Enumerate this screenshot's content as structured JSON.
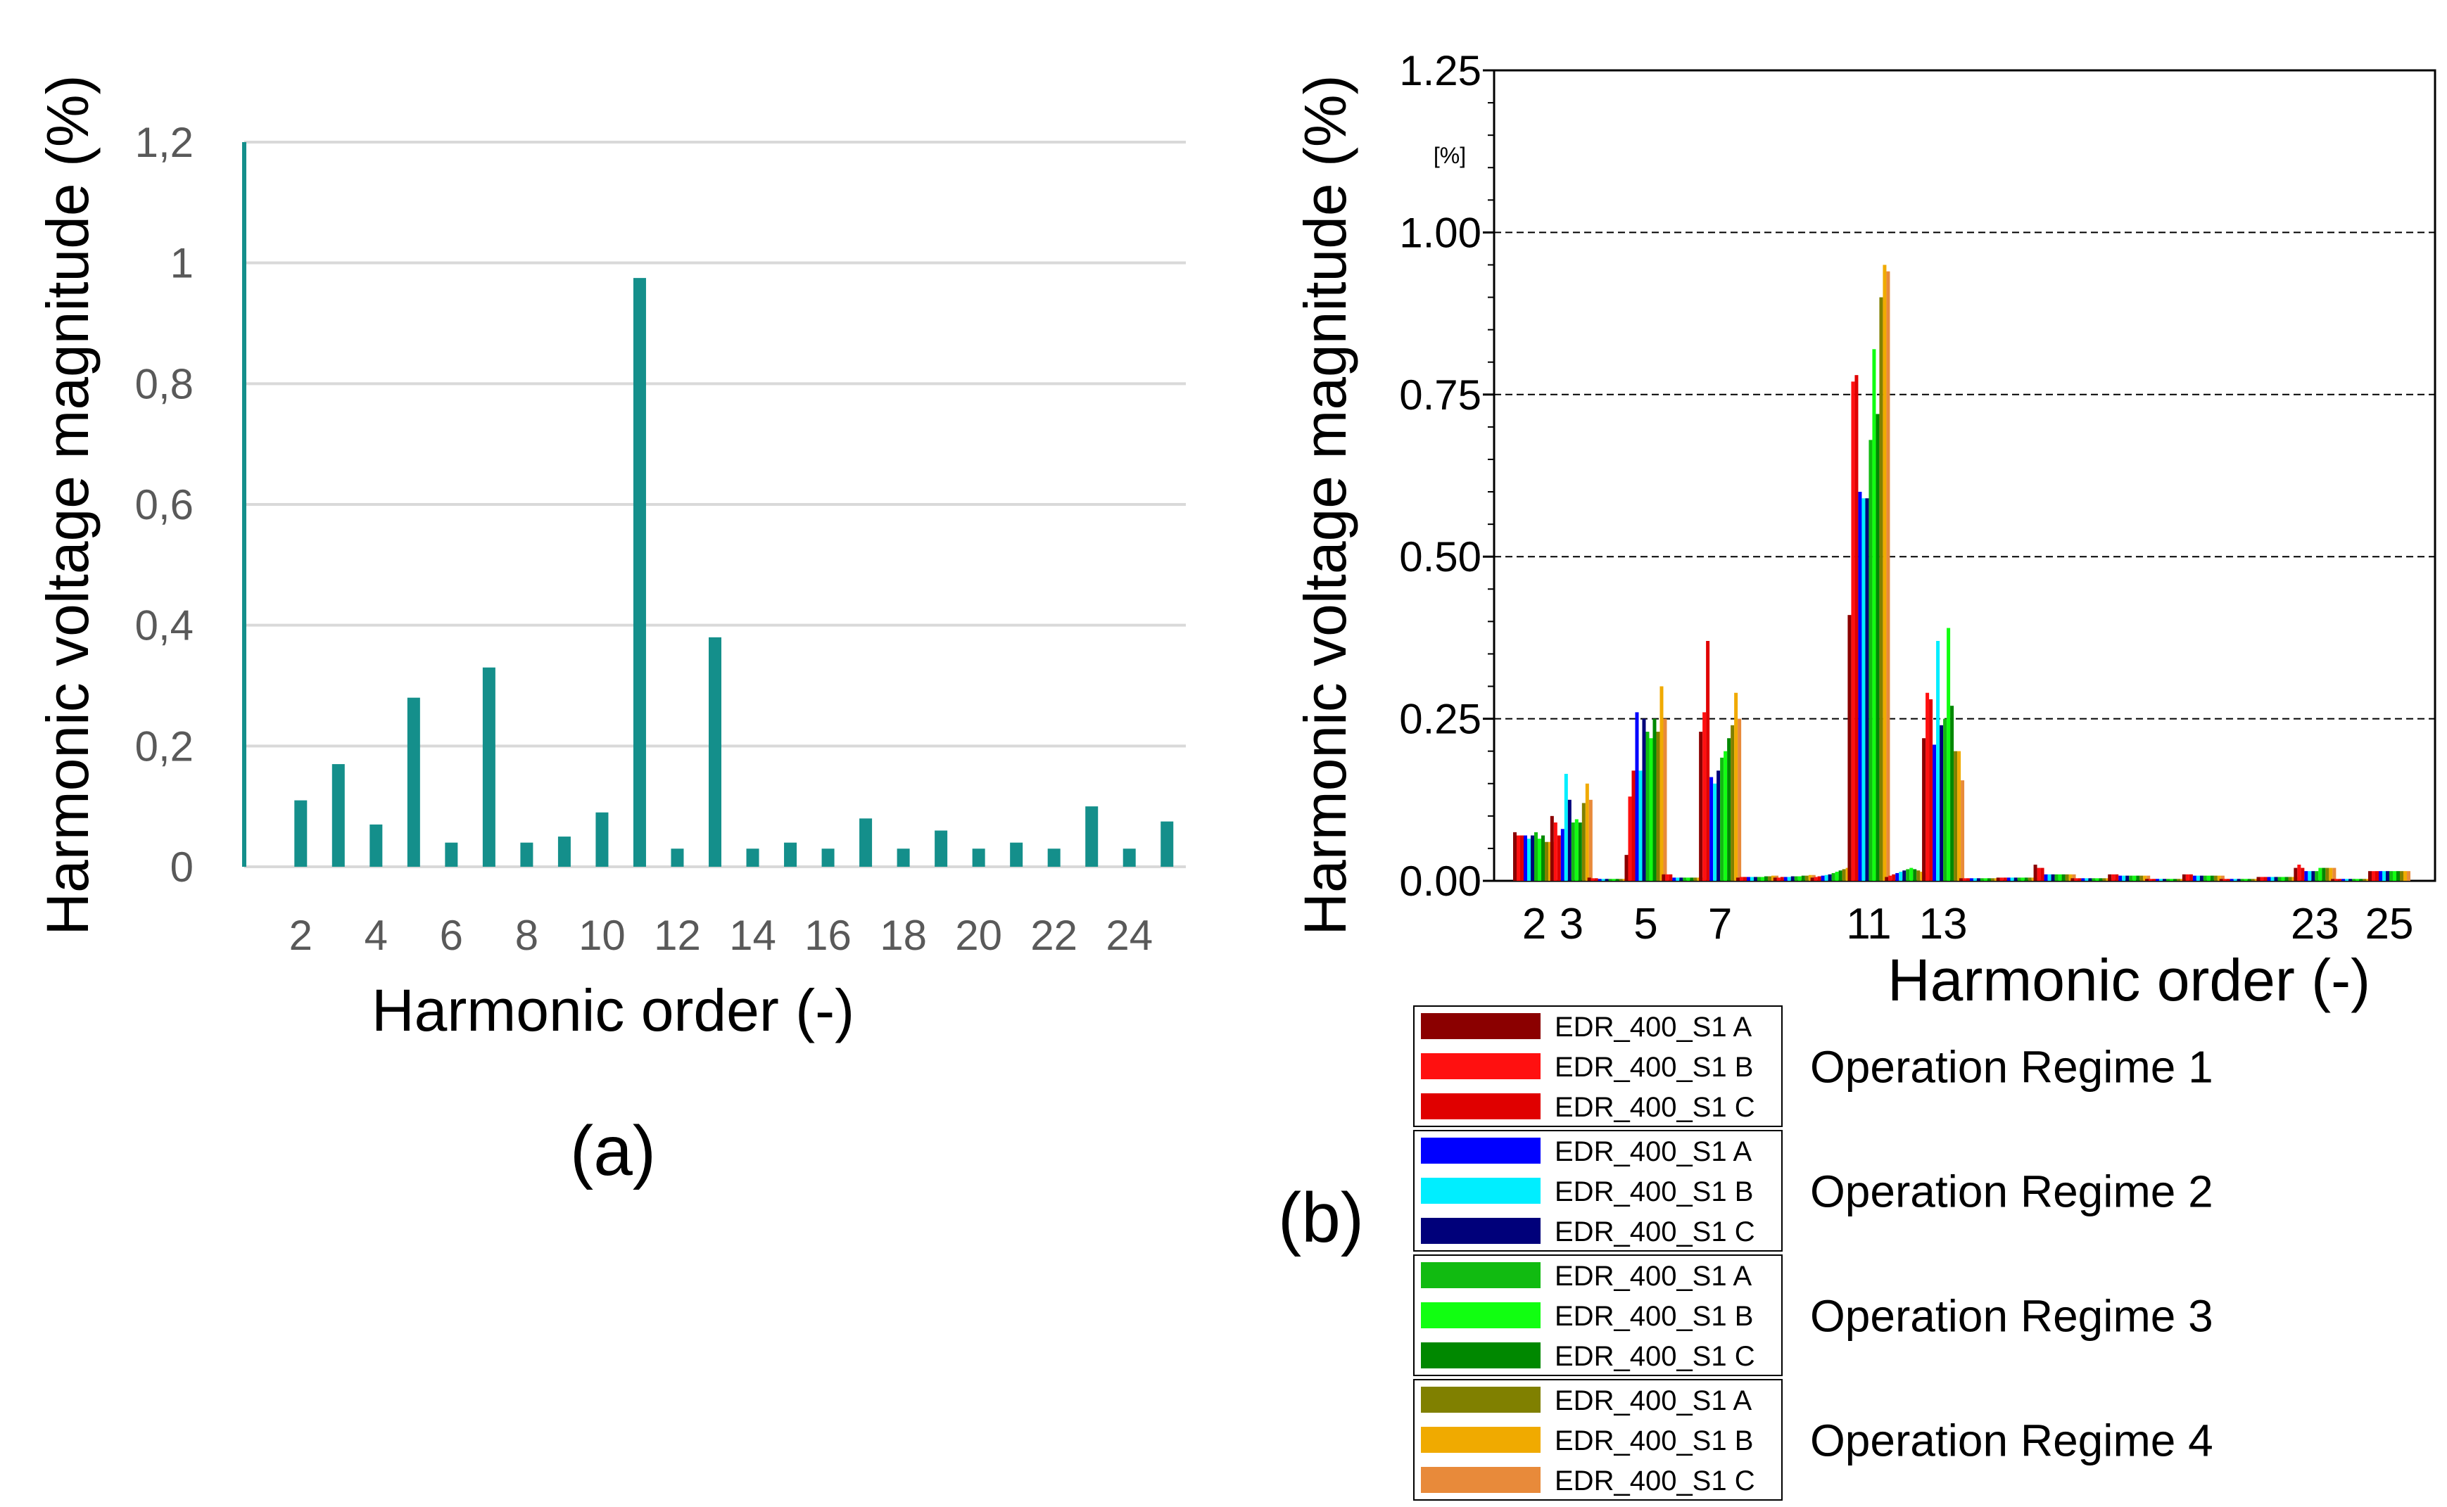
{
  "chart_data": [
    {
      "type": "bar",
      "panel_label": "(a)",
      "xlabel": "Harmonic order (-)",
      "ylabel": "Harmonic voltage magnitude (%)",
      "ylim": [
        0,
        1.2
      ],
      "yticks": [
        "0",
        "0,2",
        "0,4",
        "0,6",
        "0,8",
        "1",
        "1,2"
      ],
      "xticks": [
        "2",
        "4",
        "6",
        "8",
        "10",
        "12",
        "14",
        "16",
        "18",
        "20",
        "22",
        "24"
      ],
      "categories": [
        1,
        2,
        3,
        4,
        5,
        6,
        7,
        8,
        9,
        10,
        11,
        12,
        13,
        14,
        15,
        16,
        17,
        18,
        19,
        20,
        21,
        22,
        23,
        24,
        25
      ],
      "values": [
        1.2,
        0.11,
        0.17,
        0.07,
        0.28,
        0.04,
        0.33,
        0.04,
        0.05,
        0.09,
        0.975,
        0.03,
        0.38,
        0.03,
        0.04,
        0.03,
        0.08,
        0.03,
        0.06,
        0.03,
        0.04,
        0.03,
        0.1,
        0.03,
        0.075
      ],
      "color": "#148f8b",
      "grid": true
    },
    {
      "type": "bar",
      "panel_label": "(b)",
      "xlabel": "Harmonic order (-)",
      "ylabel": "Harmonic voltage magnitude (%)",
      "unit_label": "[%]",
      "ylim": [
        0,
        1.25
      ],
      "yticks": [
        "0.00",
        "0.25",
        "0.50",
        "0.75",
        "1.00",
        "1.25"
      ],
      "xticks": [
        "2",
        "3",
        "5",
        "7",
        "11",
        "13",
        "23",
        "25"
      ],
      "series_colors": [
        "#8b0000",
        "#ff1010",
        "#e00000",
        "#0000ff",
        "#00eeff",
        "#00007a",
        "#11bb11",
        "#11ff11",
        "#008800",
        "#808000",
        "#f0aa00",
        "#e88a3a"
      ],
      "harmonics": [
        2,
        3,
        4,
        5,
        6,
        7,
        8,
        9,
        10,
        11,
        12,
        13,
        14,
        15,
        16,
        17,
        18,
        19,
        20,
        21,
        22,
        23,
        24,
        25
      ],
      "series_values": [
        [
          0.075,
          0.07,
          0.07,
          0.07,
          0.065,
          0.07,
          0.075,
          0.065,
          0.07,
          0.06,
          0.06,
          0.06
        ],
        [
          0.1,
          0.09,
          0.07,
          0.08,
          0.165,
          0.125,
          0.09,
          0.095,
          0.09,
          0.12,
          0.15,
          0.125
        ],
        [
          0.005,
          0.004,
          0.004,
          0.003,
          0.003,
          0.003,
          0.003,
          0.003,
          0.003,
          0.003,
          0.003,
          0.003
        ],
        [
          0.04,
          0.13,
          0.17,
          0.26,
          0.17,
          0.25,
          0.23,
          0.22,
          0.25,
          0.23,
          0.3,
          0.25
        ],
        [
          0.01,
          0.01,
          0.01,
          0.005,
          0.005,
          0.005,
          0.005,
          0.005,
          0.005,
          0.005,
          0.005,
          0.005
        ],
        [
          0.23,
          0.26,
          0.37,
          0.16,
          0.15,
          0.17,
          0.19,
          0.2,
          0.22,
          0.24,
          0.29,
          0.25
        ],
        [
          0.005,
          0.006,
          0.006,
          0.006,
          0.006,
          0.006,
          0.006,
          0.006,
          0.007,
          0.007,
          0.008,
          0.008
        ],
        [
          0.005,
          0.005,
          0.006,
          0.006,
          0.006,
          0.007,
          0.007,
          0.007,
          0.008,
          0.008,
          0.009,
          0.009
        ],
        [
          0.005,
          0.006,
          0.007,
          0.008,
          0.009,
          0.01,
          0.012,
          0.014,
          0.016,
          0.018,
          0.02,
          0.02
        ],
        [
          0.41,
          0.77,
          0.78,
          0.6,
          0.59,
          0.59,
          0.68,
          0.82,
          0.72,
          0.9,
          0.95,
          0.94
        ],
        [
          0.006,
          0.008,
          0.01,
          0.012,
          0.014,
          0.016,
          0.018,
          0.02,
          0.018,
          0.016,
          0.014,
          0.012
        ],
        [
          0.22,
          0.29,
          0.28,
          0.21,
          0.37,
          0.24,
          0.25,
          0.39,
          0.27,
          0.2,
          0.2,
          0.155
        ],
        [
          0.004,
          0.004,
          0.004,
          0.004,
          0.004,
          0.004,
          0.004,
          0.004,
          0.004,
          0.004,
          0.004,
          0.004
        ],
        [
          0.005,
          0.005,
          0.005,
          0.005,
          0.005,
          0.005,
          0.005,
          0.005,
          0.005,
          0.005,
          0.005,
          0.005
        ],
        [
          0.025,
          0.02,
          0.02,
          0.01,
          0.01,
          0.01,
          0.01,
          0.01,
          0.01,
          0.01,
          0.01,
          0.01
        ],
        [
          0.004,
          0.004,
          0.004,
          0.004,
          0.004,
          0.004,
          0.004,
          0.004,
          0.004,
          0.004,
          0.004,
          0.004
        ],
        [
          0.01,
          0.01,
          0.01,
          0.008,
          0.008,
          0.008,
          0.008,
          0.008,
          0.008,
          0.008,
          0.008,
          0.008
        ],
        [
          0.003,
          0.003,
          0.003,
          0.003,
          0.003,
          0.003,
          0.003,
          0.003,
          0.003,
          0.003,
          0.003,
          0.003
        ],
        [
          0.01,
          0.01,
          0.01,
          0.008,
          0.008,
          0.008,
          0.008,
          0.008,
          0.008,
          0.008,
          0.008,
          0.008
        ],
        [
          0.003,
          0.003,
          0.003,
          0.003,
          0.003,
          0.003,
          0.003,
          0.003,
          0.003,
          0.003,
          0.003,
          0.003
        ],
        [
          0.006,
          0.006,
          0.006,
          0.006,
          0.006,
          0.006,
          0.006,
          0.006,
          0.006,
          0.006,
          0.006,
          0.006
        ],
        [
          0.02,
          0.025,
          0.02,
          0.015,
          0.015,
          0.015,
          0.015,
          0.02,
          0.02,
          0.02,
          0.02,
          0.02
        ],
        [
          0.003,
          0.003,
          0.003,
          0.003,
          0.003,
          0.003,
          0.003,
          0.003,
          0.003,
          0.003,
          0.003,
          0.003
        ],
        [
          0.015,
          0.015,
          0.015,
          0.015,
          0.015,
          0.015,
          0.015,
          0.015,
          0.015,
          0.015,
          0.015,
          0.015
        ]
      ],
      "legend_entries": [
        "EDR_400_S1 A",
        "EDR_400_S1 B",
        "EDR_400_S1 C",
        "EDR_400_S1 A",
        "EDR_400_S1 B",
        "EDR_400_S1 C",
        "EDR_400_S1 A",
        "EDR_400_S1 B",
        "EDR_400_S1 C",
        "EDR_400_S1 A",
        "EDR_400_S1 B",
        "EDR_400_S1 C"
      ],
      "regimes": [
        "Operation Regime 1",
        "Operation Regime 2",
        "Operation Regime 3",
        "Operation Regime 4"
      ],
      "grid": true
    }
  ]
}
